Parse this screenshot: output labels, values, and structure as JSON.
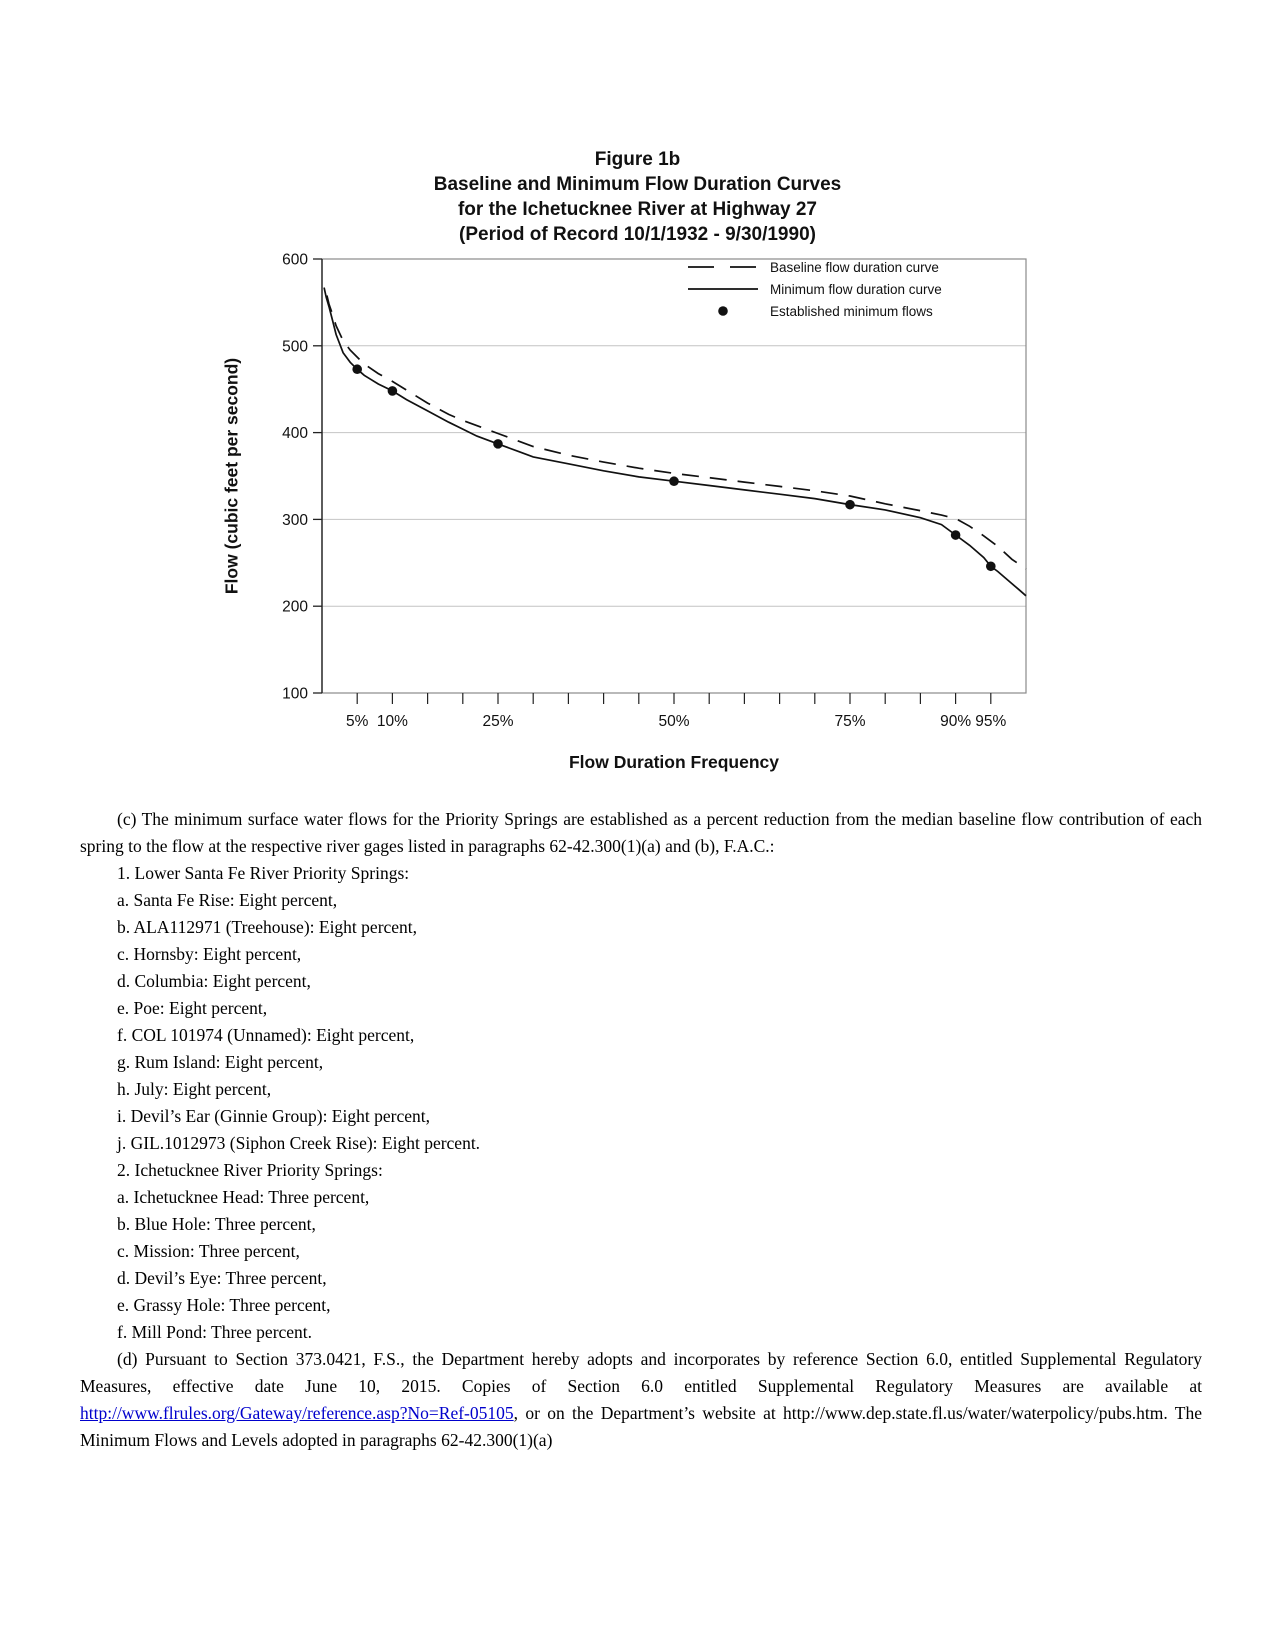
{
  "figure": {
    "title_lines": [
      "Figure 1b",
      "Baseline and Minimum Flow Duration Curves",
      "for the Ichetucknee River at Highway 27",
      "(Period of Record 10/1/1932 - 9/30/1990)"
    ]
  },
  "chart_data": {
    "type": "line",
    "title": "Figure 1b  Baseline and Minimum Flow Duration Curves for the Ichetucknee River at Highway 27 (Period of Record 10/1/1932 - 9/30/1990)",
    "xlabel": "Flow Duration Frequency",
    "ylabel": "Flow (cubic feet per second)",
    "xlim": [
      0,
      100
    ],
    "ylim": [
      100,
      600
    ],
    "grid": "horizontal",
    "legend_position": "inside-top-right",
    "y_ticks": [
      600,
      500,
      400,
      300,
      200,
      100
    ],
    "y_gridlines": [
      500,
      400,
      300,
      200
    ],
    "x_ticks": [
      5,
      10,
      15,
      20,
      25,
      30,
      35,
      40,
      45,
      50,
      55,
      60,
      65,
      70,
      75,
      80,
      85,
      90,
      95
    ],
    "x_tick_labels": [
      {
        "pct": 5,
        "label": "5%"
      },
      {
        "pct": 10,
        "label": "10%"
      },
      {
        "pct": 25,
        "label": "25%"
      },
      {
        "pct": 50,
        "label": "50%"
      },
      {
        "pct": 75,
        "label": "75%"
      },
      {
        "pct": 90,
        "label": "90%"
      },
      {
        "pct": 95,
        "label": "95%"
      }
    ],
    "series": [
      {
        "name": "Baseline flow duration curve",
        "style": "dashed",
        "x": [
          0.7,
          1,
          1.5,
          2,
          3,
          4,
          5,
          6,
          8,
          10,
          12,
          15,
          18,
          20,
          25,
          30,
          35,
          40,
          45,
          50,
          55,
          60,
          65,
          70,
          75,
          80,
          85,
          88,
          90,
          92,
          94,
          96,
          98,
          100
        ],
        "y": [
          558,
          548,
          536,
          523,
          506,
          495,
          487,
          479,
          468,
          459,
          449,
          434,
          421,
          414,
          399,
          384,
          374,
          366,
          359,
          353,
          348,
          343,
          338,
          333,
          327,
          318,
          310,
          305,
          301,
          292,
          281,
          269,
          254,
          243
        ]
      },
      {
        "name": "Minimum flow duration curve",
        "style": "solid",
        "x": [
          0.3,
          0.6,
          1,
          1.5,
          2,
          3,
          4,
          5,
          6,
          7,
          8,
          10,
          12,
          15,
          18,
          20,
          22,
          25,
          28,
          30,
          35,
          40,
          45,
          50,
          55,
          60,
          65,
          70,
          75,
          80,
          85,
          88,
          90,
          92,
          94,
          95,
          96,
          97,
          98,
          99,
          100
        ],
        "y": [
          567,
          556,
          545,
          529,
          513,
          492,
          481,
          473,
          466,
          461,
          456,
          448,
          438,
          425,
          412,
          404,
          396,
          387,
          378,
          372,
          364,
          356,
          349,
          344,
          339,
          334,
          329,
          324,
          317,
          311,
          302,
          294,
          282,
          270,
          256,
          246,
          240,
          233,
          226,
          219,
          212
        ]
      },
      {
        "name": "Established minimum flows",
        "style": "points",
        "x": [
          5,
          10,
          25,
          50,
          75,
          90,
          95
        ],
        "y": [
          473,
          448,
          387,
          344,
          317,
          282,
          246
        ]
      }
    ],
    "colors": {
      "curve": "#111111",
      "grid": "#c4c4c4",
      "frame": "#8a8a8a",
      "axis": "#222222"
    }
  },
  "body": {
    "para_c": "(c) The minimum surface water flows for the Priority Springs are established as a percent reduction from the median baseline flow contribution of each spring to the flow at the respective river gages listed in paragraphs 62-42.300(1)(a) and (b), F.A.C.:",
    "list": [
      "1. Lower Santa Fe River Priority Springs:",
      "a. Santa Fe Rise: Eight percent,",
      "b. ALA112971 (Treehouse): Eight percent,",
      "c. Hornsby: Eight percent,",
      "d. Columbia: Eight percent,",
      "e. Poe: Eight percent,",
      "f. COL 101974 (Unnamed): Eight percent,",
      "g. Rum Island: Eight percent,",
      "h. July: Eight percent,",
      "i. Devil’s Ear (Ginnie Group): Eight percent,",
      "j. GIL.1012973 (Siphon Creek Rise): Eight percent.",
      "2. Ichetucknee River Priority Springs:",
      "a. Ichetucknee Head: Three percent,",
      "b. Blue Hole: Three percent,",
      "c. Mission: Three percent,",
      "d. Devil’s Eye: Three percent,",
      "e. Grassy Hole: Three percent,",
      "f. Mill Pond: Three percent."
    ],
    "para_d": {
      "before_link": "(d) Pursuant to Section 373.0421, F.S., the Department hereby adopts and incorporates by reference Section 6.0, entitled Supplemental Regulatory Measures, effective date June 10, 2015. Copies of Section 6.0 entitled Supplemental Regulatory Measures are available at ",
      "link_text": "http://www.flrules.org/Gateway/reference.asp?No=Ref-05105",
      "after_link": ", or on the Department’s website at http://www.dep.state.fl.us/water/waterpolicy/pubs.htm. The Minimum Flows and Levels adopted in paragraphs 62-42.300(1)(a)"
    }
  }
}
